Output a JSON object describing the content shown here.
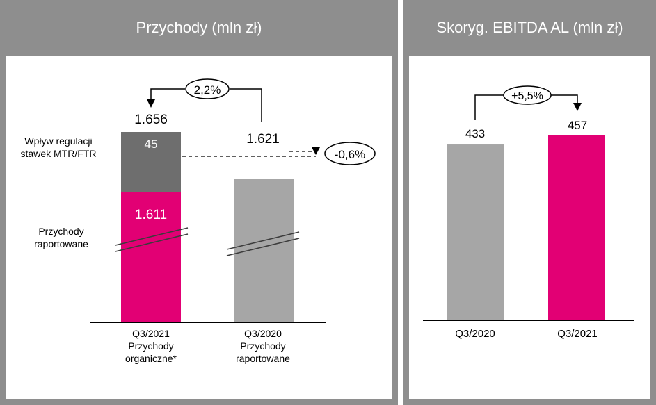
{
  "colors": {
    "frame": "#8e8e8e",
    "magenta": "#e20074",
    "gray_bar": "#a6a6a6",
    "dark_gray": "#6e6e6e",
    "text": "#000000"
  },
  "left_panel": {
    "title": "Przychody (mln zł)"
  },
  "right_panel": {
    "title": "Skoryg. EBITDA AL (mln zł)"
  },
  "chart_data": [
    {
      "type": "bar",
      "title": "Przychody (mln zł)",
      "categories": [
        "Q3/2021 Przychody organiczne*",
        "Q3/2020 Przychody raportowane"
      ],
      "stacked_bar": {
        "segments": [
          {
            "name": "Przychody raportowane",
            "value": 1611,
            "label": "1.611",
            "color": "#e20074"
          },
          {
            "name": "Wpływ regulacji stawek MTR/FTR",
            "value": 45,
            "label": "45",
            "color": "#6e6e6e"
          }
        ],
        "total_label": "1.656"
      },
      "second_bar": {
        "value": 1621,
        "label": "1.621",
        "color": "#a6a6a6"
      },
      "annotations": {
        "growth": "2,2%",
        "diff": "-0,6%",
        "seg_top_label_line1": "Wpływ regulacji",
        "seg_top_label_line2": "stawek MTR/FTR",
        "seg_bottom_label_line1": "Przychody",
        "seg_bottom_label_line2": "raportowane"
      },
      "x_labels": [
        [
          "Q3/2021",
          "Przychody",
          "organiczne*"
        ],
        [
          "Q3/2020",
          "Przychody",
          "raportowane"
        ]
      ],
      "axis_broken": true
    },
    {
      "type": "bar",
      "title": "Skoryg. EBITDA AL (mln zł)",
      "categories": [
        "Q3/2020",
        "Q3/2021"
      ],
      "values": [
        433,
        457
      ],
      "value_labels": [
        "433",
        "457"
      ],
      "colors": [
        "#a6a6a6",
        "#e20074"
      ],
      "annotations": {
        "growth": "+5,5%"
      }
    }
  ]
}
